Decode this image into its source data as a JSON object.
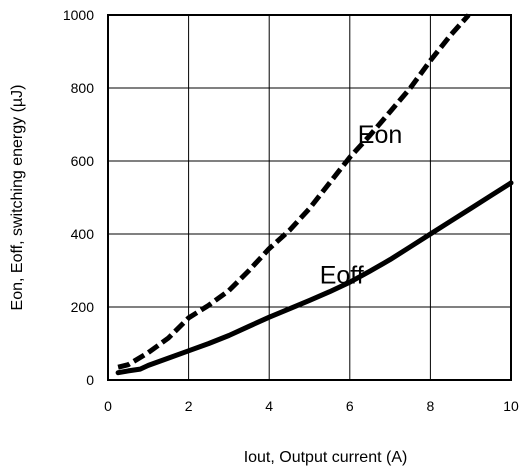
{
  "chart_data": {
    "type": "line",
    "title": "",
    "xlabel": "Iout, Output current (A)",
    "ylabel": "Eon, Eoff, switching energy (µJ)",
    "xlim": [
      0,
      10
    ],
    "ylim": [
      0,
      1000
    ],
    "xticks": [
      0,
      2,
      4,
      6,
      8,
      10
    ],
    "yticks": [
      0,
      200,
      400,
      600,
      800,
      1000
    ],
    "xtick_labels": [
      "0",
      "2",
      "4",
      "6",
      "8",
      "10"
    ],
    "ytick_labels": [
      "0",
      "200",
      "400",
      "600",
      "800",
      "1000"
    ],
    "grid": true,
    "legend": "none",
    "series": [
      {
        "name": "Eon",
        "style": "dashed",
        "color": "#000000",
        "x": [
          0.25,
          0.5,
          1,
          1.5,
          2,
          2.5,
          3,
          3.5,
          4,
          4.5,
          5,
          5.5,
          6,
          6.5,
          7,
          7.5,
          8,
          8.5,
          8.95
        ],
        "y": [
          35,
          42,
          75,
          115,
          170,
          205,
          245,
          300,
          360,
          410,
          470,
          540,
          610,
          670,
          735,
          800,
          875,
          945,
          1000
        ]
      },
      {
        "name": "Eoff",
        "style": "solid",
        "color": "#000000",
        "x": [
          0.25,
          0.5,
          0.8,
          1,
          1.5,
          2,
          2.5,
          3,
          3.5,
          4,
          4.5,
          5,
          5.5,
          6,
          6.5,
          7,
          7.5,
          8,
          8.5,
          9,
          9.5,
          10
        ],
        "y": [
          20,
          25,
          30,
          40,
          60,
          80,
          100,
          122,
          147,
          172,
          195,
          218,
          242,
          268,
          298,
          330,
          365,
          400,
          435,
          470,
          505,
          540
        ]
      }
    ],
    "annotations": [
      {
        "text": "Eon",
        "x": 6.75,
        "y": 650
      },
      {
        "text": "Eoff",
        "x": 5.8,
        "y": 265
      }
    ]
  }
}
